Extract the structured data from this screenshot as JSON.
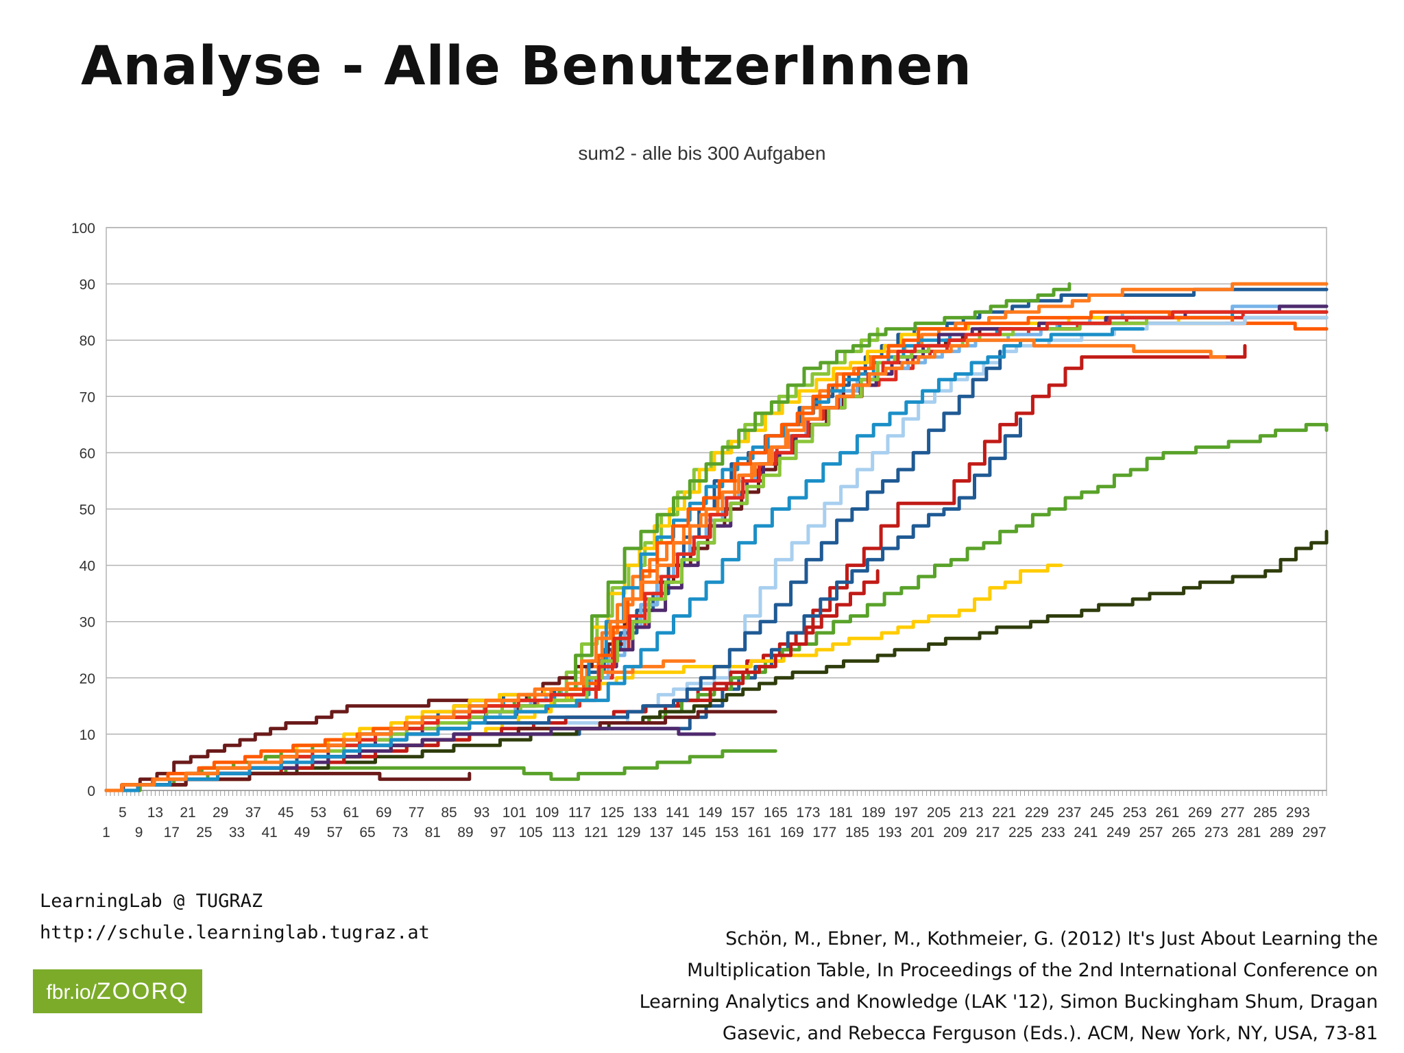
{
  "slide": {
    "title": "Analyse - Alle BenutzerInnen"
  },
  "footer": {
    "lab_name": "LearningLab @ TUGRAZ",
    "lab_url": "http://schule.learninglab.tugraz.at",
    "badge_prefix": "fbr.io/",
    "badge_code": "ZOORQ",
    "citation_lines": [
      "Schön, M., Ebner, M., Kothmeier, G. (2012) It's Just About Learning the",
      "Multiplication Table, In Proceedings of the 2nd International Conference on",
      "Learning Analytics and Knowledge (LAK '12), Simon Buckingham Shum, Dragan",
      "Gasevic, and Rebecca Ferguson (Eds.). ACM, New York, NY, USA, 73-81"
    ]
  },
  "chart_data": {
    "type": "line",
    "title": "sum2 - alle bis 300 Aufgaben",
    "xlabel": "",
    "ylabel": "",
    "ylim": [
      0,
      100
    ],
    "yticks": [
      0,
      10,
      20,
      30,
      40,
      50,
      60,
      70,
      80,
      90,
      100
    ],
    "xlim": [
      1,
      300
    ],
    "x_tick_labels_row1": [
      "5",
      "13",
      "21",
      "29",
      "37",
      "45",
      "53",
      "61",
      "69",
      "77",
      "85",
      "93",
      "101",
      "109",
      "117",
      "125",
      "133",
      "141",
      "149",
      "157",
      "165",
      "173",
      "181",
      "189",
      "197",
      "205",
      "213",
      "221",
      "229",
      "237",
      "245",
      "253",
      "261",
      "269",
      "277",
      "285",
      "293"
    ],
    "x_tick_labels_row2": [
      "1",
      "9",
      "17",
      "25",
      "33",
      "41",
      "49",
      "57",
      "65",
      "73",
      "81",
      "89",
      "97",
      "105",
      "113",
      "121",
      "129",
      "137",
      "145",
      "153",
      "161",
      "169",
      "177",
      "185",
      "193",
      "201",
      "209",
      "217",
      "225",
      "233",
      "241",
      "249",
      "257",
      "265",
      "273",
      "281",
      "289",
      "297"
    ],
    "grid": true,
    "legend": "none",
    "series": [
      {
        "color": "#1f5a94",
        "points": [
          [
            1,
            0
          ],
          [
            40,
            4
          ],
          [
            90,
            16
          ],
          [
            115,
            18
          ],
          [
            135,
            35
          ],
          [
            150,
            55
          ],
          [
            175,
            70
          ],
          [
            195,
            81
          ],
          [
            235,
            88
          ],
          [
            300,
            89
          ]
        ]
      },
      {
        "color": "#ff7a1c",
        "points": [
          [
            1,
            0
          ],
          [
            40,
            5
          ],
          [
            90,
            13
          ],
          [
            115,
            17
          ],
          [
            130,
            38
          ],
          [
            155,
            55
          ],
          [
            180,
            74
          ],
          [
            205,
            82
          ],
          [
            250,
            89
          ],
          [
            300,
            90
          ]
        ]
      },
      {
        "color": "#8ac53a",
        "points": [
          [
            1,
            0
          ],
          [
            40,
            6
          ],
          [
            90,
            14
          ],
          [
            110,
            16
          ],
          [
            125,
            36
          ],
          [
            145,
            57
          ],
          [
            170,
            72
          ],
          [
            190,
            82
          ]
        ]
      },
      {
        "color": "#e02b1f",
        "points": [
          [
            1,
            0
          ],
          [
            40,
            4
          ],
          [
            90,
            12
          ],
          [
            117,
            16
          ],
          [
            137,
            38
          ],
          [
            157,
            56
          ],
          [
            182,
            70
          ],
          [
            207,
            80
          ],
          [
            255,
            84
          ],
          [
            300,
            85
          ]
        ]
      },
      {
        "color": "#6b1a1a",
        "points": [
          [
            1,
            0
          ],
          [
            30,
            8
          ],
          [
            60,
            15
          ],
          [
            100,
            16
          ],
          [
            120,
            23
          ],
          [
            140,
            40
          ],
          [
            165,
            60
          ],
          [
            190,
            76
          ],
          [
            215,
            82
          ],
          [
            260,
            83
          ],
          [
            300,
            84
          ]
        ]
      },
      {
        "color": "#77b3e8",
        "points": [
          [
            1,
            0
          ],
          [
            40,
            4
          ],
          [
            90,
            12
          ],
          [
            120,
            20
          ],
          [
            140,
            42
          ],
          [
            160,
            58
          ],
          [
            185,
            73
          ],
          [
            210,
            79
          ],
          [
            250,
            85
          ],
          [
            300,
            86
          ]
        ]
      },
      {
        "color": "#ffcc00",
        "points": [
          [
            1,
            0
          ],
          [
            40,
            6
          ],
          [
            90,
            16
          ],
          [
            112,
            18
          ],
          [
            128,
            40
          ],
          [
            150,
            60
          ],
          [
            175,
            73
          ],
          [
            200,
            82
          ],
          [
            245,
            84
          ],
          [
            275,
            83
          ]
        ]
      },
      {
        "color": "#1b8fc7",
        "points": [
          [
            1,
            0
          ],
          [
            40,
            5
          ],
          [
            90,
            15
          ],
          [
            115,
            17
          ],
          [
            132,
            42
          ],
          [
            152,
            57
          ],
          [
            178,
            71
          ],
          [
            200,
            80
          ],
          [
            250,
            84
          ],
          [
            300,
            85
          ]
        ]
      },
      {
        "color": "#4f2a6e",
        "points": [
          [
            1,
            0
          ],
          [
            40,
            4
          ],
          [
            90,
            13
          ],
          [
            118,
            18
          ],
          [
            138,
            36
          ],
          [
            158,
            55
          ],
          [
            182,
            70
          ],
          [
            205,
            81
          ],
          [
            250,
            84
          ],
          [
            300,
            86
          ]
        ]
      },
      {
        "color": "#59a22a",
        "points": [
          [
            1,
            0
          ],
          [
            40,
            6
          ],
          [
            90,
            14
          ],
          [
            112,
            18
          ],
          [
            128,
            43
          ],
          [
            152,
            61
          ],
          [
            172,
            75
          ],
          [
            192,
            82
          ],
          [
            210,
            84
          ],
          [
            237,
            90
          ]
        ]
      },
      {
        "color": "#ff5a00",
        "points": [
          [
            1,
            0
          ],
          [
            35,
            6
          ],
          [
            90,
            14
          ],
          [
            118,
            19
          ],
          [
            136,
            44
          ],
          [
            155,
            58
          ],
          [
            178,
            72
          ],
          [
            200,
            82
          ],
          [
            250,
            85
          ],
          [
            300,
            82
          ]
        ]
      },
      {
        "color": "#a8cfef",
        "points": [
          [
            1,
            0
          ],
          [
            40,
            4
          ],
          [
            90,
            12
          ],
          [
            125,
            12
          ],
          [
            140,
            18
          ],
          [
            150,
            20
          ],
          [
            165,
            41
          ],
          [
            185,
            57
          ],
          [
            200,
            69
          ],
          [
            220,
            78
          ],
          [
            260,
            83
          ],
          [
            300,
            84
          ]
        ]
      },
      {
        "color": "#c11b17",
        "points": [
          [
            1,
            0
          ],
          [
            40,
            3
          ],
          [
            90,
            10
          ],
          [
            130,
            12
          ],
          [
            150,
            19
          ],
          [
            170,
            28
          ],
          [
            195,
            51
          ],
          [
            205,
            51
          ],
          [
            220,
            65
          ],
          [
            240,
            77
          ],
          [
            275,
            77
          ],
          [
            280,
            79
          ]
        ]
      },
      {
        "color": "#59a22a",
        "points": [
          [
            1,
            0
          ],
          [
            30,
            3
          ],
          [
            60,
            4
          ],
          [
            100,
            4
          ],
          [
            110,
            2
          ],
          [
            120,
            3
          ],
          [
            140,
            5
          ],
          [
            152,
            7
          ],
          [
            165,
            7
          ]
        ]
      },
      {
        "color": "#1f5a94",
        "points": [
          [
            1,
            0
          ],
          [
            40,
            4
          ],
          [
            90,
            10
          ],
          [
            140,
            11
          ],
          [
            160,
            22
          ],
          [
            180,
            37
          ],
          [
            195,
            45
          ],
          [
            210,
            52
          ],
          [
            225,
            66
          ]
        ]
      },
      {
        "color": "#59a22a",
        "points": [
          [
            1,
            0
          ],
          [
            40,
            3
          ],
          [
            90,
            10
          ],
          [
            130,
            12
          ],
          [
            150,
            18
          ],
          [
            175,
            28
          ],
          [
            200,
            38
          ],
          [
            220,
            46
          ],
          [
            240,
            53
          ],
          [
            260,
            60
          ],
          [
            280,
            62
          ],
          [
            295,
            65
          ],
          [
            300,
            64
          ]
        ]
      },
      {
        "color": "#ffcc00",
        "points": [
          [
            1,
            0
          ],
          [
            40,
            3
          ],
          [
            90,
            10
          ],
          [
            130,
            21
          ],
          [
            155,
            22
          ],
          [
            175,
            25
          ],
          [
            195,
            29
          ],
          [
            210,
            32
          ],
          [
            225,
            39
          ],
          [
            235,
            40
          ]
        ]
      },
      {
        "color": "#2f3d0c",
        "points": [
          [
            1,
            0
          ],
          [
            40,
            3
          ],
          [
            90,
            8
          ],
          [
            120,
            11
          ],
          [
            145,
            15
          ],
          [
            165,
            20
          ],
          [
            190,
            24
          ],
          [
            215,
            28
          ],
          [
            240,
            32
          ],
          [
            265,
            36
          ],
          [
            285,
            39
          ],
          [
            300,
            46
          ]
        ]
      },
      {
        "color": "#c11b17",
        "points": [
          [
            1,
            0
          ],
          [
            40,
            3
          ],
          [
            90,
            10
          ],
          [
            145,
            16
          ],
          [
            165,
            24
          ],
          [
            180,
            33
          ],
          [
            190,
            39
          ]
        ]
      },
      {
        "color": "#6b1a1a",
        "points": [
          [
            1,
            0
          ],
          [
            40,
            3
          ],
          [
            88,
            2
          ],
          [
            90,
            3
          ]
        ]
      },
      {
        "color": "#6b1a1a",
        "points": [
          [
            1,
            0
          ],
          [
            40,
            4
          ],
          [
            90,
            10
          ],
          [
            130,
            12
          ],
          [
            150,
            14
          ],
          [
            165,
            14
          ]
        ]
      },
      {
        "color": "#4f2a6e",
        "points": [
          [
            1,
            0
          ],
          [
            40,
            4
          ],
          [
            90,
            10
          ],
          [
            130,
            11
          ],
          [
            145,
            10
          ],
          [
            150,
            10
          ]
        ]
      },
      {
        "color": "#ff7a1c",
        "points": [
          [
            1,
            0
          ],
          [
            40,
            5
          ],
          [
            90,
            14
          ],
          [
            118,
            20
          ],
          [
            130,
            22
          ],
          [
            145,
            23
          ]
        ]
      },
      {
        "color": "#1f5a94",
        "points": [
          [
            1,
            0
          ],
          [
            40,
            4
          ],
          [
            90,
            12
          ],
          [
            125,
            13
          ],
          [
            140,
            16
          ],
          [
            150,
            22
          ],
          [
            165,
            33
          ],
          [
            180,
            48
          ],
          [
            195,
            57
          ],
          [
            210,
            70
          ],
          [
            220,
            78
          ]
        ]
      },
      {
        "color": "#8ac53a",
        "points": [
          [
            1,
            0
          ],
          [
            40,
            5
          ],
          [
            90,
            13
          ],
          [
            115,
            16
          ],
          [
            130,
            30
          ],
          [
            150,
            48
          ],
          [
            170,
            62
          ],
          [
            190,
            76
          ],
          [
            215,
            81
          ],
          [
            260,
            84
          ]
        ]
      },
      {
        "color": "#e02b1f",
        "points": [
          [
            1,
            0
          ],
          [
            40,
            5
          ],
          [
            90,
            14
          ],
          [
            118,
            18
          ],
          [
            133,
            35
          ],
          [
            153,
            52
          ],
          [
            173,
            66
          ],
          [
            195,
            78
          ],
          [
            220,
            82
          ],
          [
            270,
            85
          ],
          [
            300,
            85
          ]
        ]
      },
      {
        "color": "#1b8fc7",
        "points": [
          [
            1,
            0
          ],
          [
            40,
            4
          ],
          [
            90,
            12
          ],
          [
            120,
            16
          ],
          [
            140,
            31
          ],
          [
            160,
            47
          ],
          [
            185,
            63
          ],
          [
            205,
            73
          ],
          [
            225,
            80
          ],
          [
            255,
            82
          ]
        ]
      },
      {
        "color": "#ff7a1c",
        "points": [
          [
            1,
            0
          ],
          [
            40,
            5
          ],
          [
            90,
            15
          ],
          [
            114,
            19
          ],
          [
            128,
            34
          ],
          [
            148,
            50
          ],
          [
            168,
            64
          ],
          [
            188,
            74
          ],
          [
            212,
            80
          ],
          [
            265,
            78
          ],
          [
            275,
            77
          ]
        ]
      }
    ]
  }
}
